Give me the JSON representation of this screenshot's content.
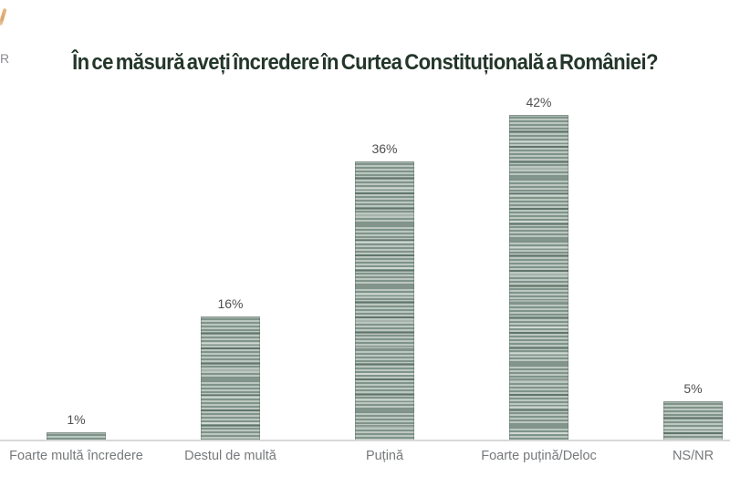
{
  "logo": {
    "partial_letter": "R"
  },
  "title": "În ce măsură aveți încredere în Curtea Constituțională a României?",
  "chart_data": {
    "type": "bar",
    "title": "În ce măsură aveți încredere în Curtea Constituțională a României?",
    "categories": [
      "Foarte multă încredere",
      "Destul de multă",
      "Puțină",
      "Foarte puțină/Deloc",
      "NS/NR"
    ],
    "values": [
      1,
      16,
      36,
      42,
      5
    ],
    "value_labels": [
      "1%",
      "16%",
      "36%",
      "42%",
      "5%"
    ],
    "xlabel": "",
    "ylabel": "",
    "ylim": [
      0,
      45
    ],
    "grid": false,
    "legend": "none",
    "colors": {
      "title": "#233629",
      "bar_base": "#8ba196",
      "bar_stripe_light": "#bcc7c0",
      "bar_stripe_dark": "#7f948a",
      "value_label": "#4d504d",
      "category_label": "#76797c",
      "baseline": "#d8d8d8",
      "logo_accent": "#d99a5a"
    }
  }
}
